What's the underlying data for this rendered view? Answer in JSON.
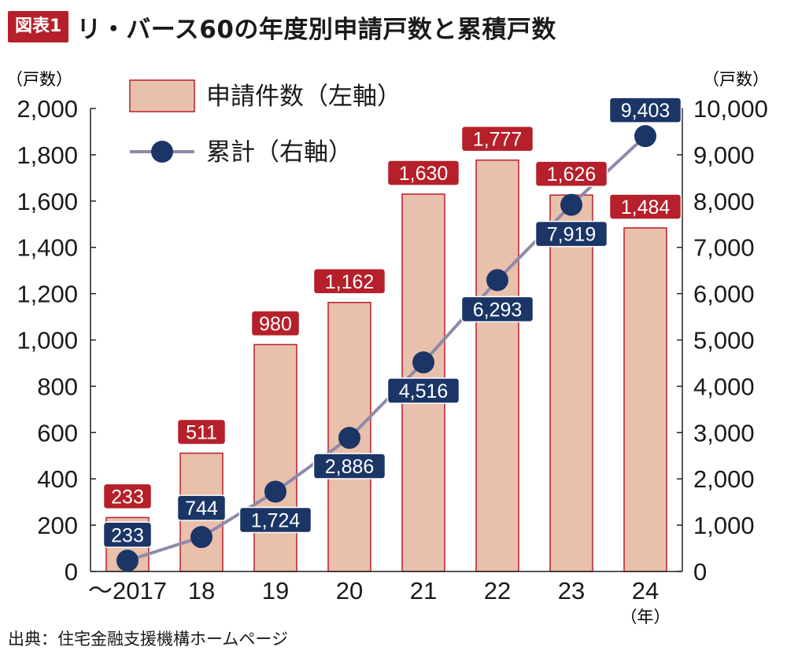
{
  "figure_label": "図表1",
  "title": "リ・バース60の年度別申請戸数と累積戸数",
  "source": "出典：住宅金融支援機構ホームページ",
  "colors": {
    "bar_fill": "#e9c0ab",
    "bar_stroke": "#b5202a",
    "bar_label_bg": "#b5202a",
    "line": "#8e8aa8",
    "marker": "#1b3566",
    "cum_label_bg": "#1b3566",
    "axis": "#222222"
  },
  "chart_data": {
    "type": "bar",
    "categories": [
      "〜2017",
      "18",
      "19",
      "20",
      "21",
      "22",
      "23",
      "24"
    ],
    "x_unit": "（年）",
    "series": [
      {
        "name": "申請件数（左軸）",
        "type": "bar",
        "axis": "left",
        "values": [
          233,
          511,
          980,
          1162,
          1630,
          1777,
          1626,
          1484
        ],
        "labels": [
          "233",
          "511",
          "980",
          "1,162",
          "1,630",
          "1,777",
          "1,626",
          "1,484"
        ]
      },
      {
        "name": "累計（右軸）",
        "type": "line",
        "axis": "right",
        "values": [
          233,
          744,
          1724,
          2886,
          4516,
          6293,
          7919,
          9403
        ],
        "labels": [
          "233",
          "744",
          "1,724",
          "2,886",
          "4,516",
          "6,293",
          "7,919",
          "9,403"
        ]
      }
    ],
    "y_left": {
      "unit": "（戸数）",
      "lim": [
        0,
        2000
      ],
      "ticks": [
        "0",
        "200",
        "400",
        "600",
        "800",
        "1,000",
        "1,200",
        "1,400",
        "1,600",
        "1,800",
        "2,000"
      ]
    },
    "y_right": {
      "unit": "（戸数）",
      "lim": [
        0,
        10000
      ],
      "ticks": [
        "0",
        "1,000",
        "2,000",
        "3,000",
        "4,000",
        "5,000",
        "6,000",
        "7,000",
        "8,000",
        "9,000",
        "10,000"
      ]
    },
    "legend_position": "top-left",
    "grid": false
  }
}
